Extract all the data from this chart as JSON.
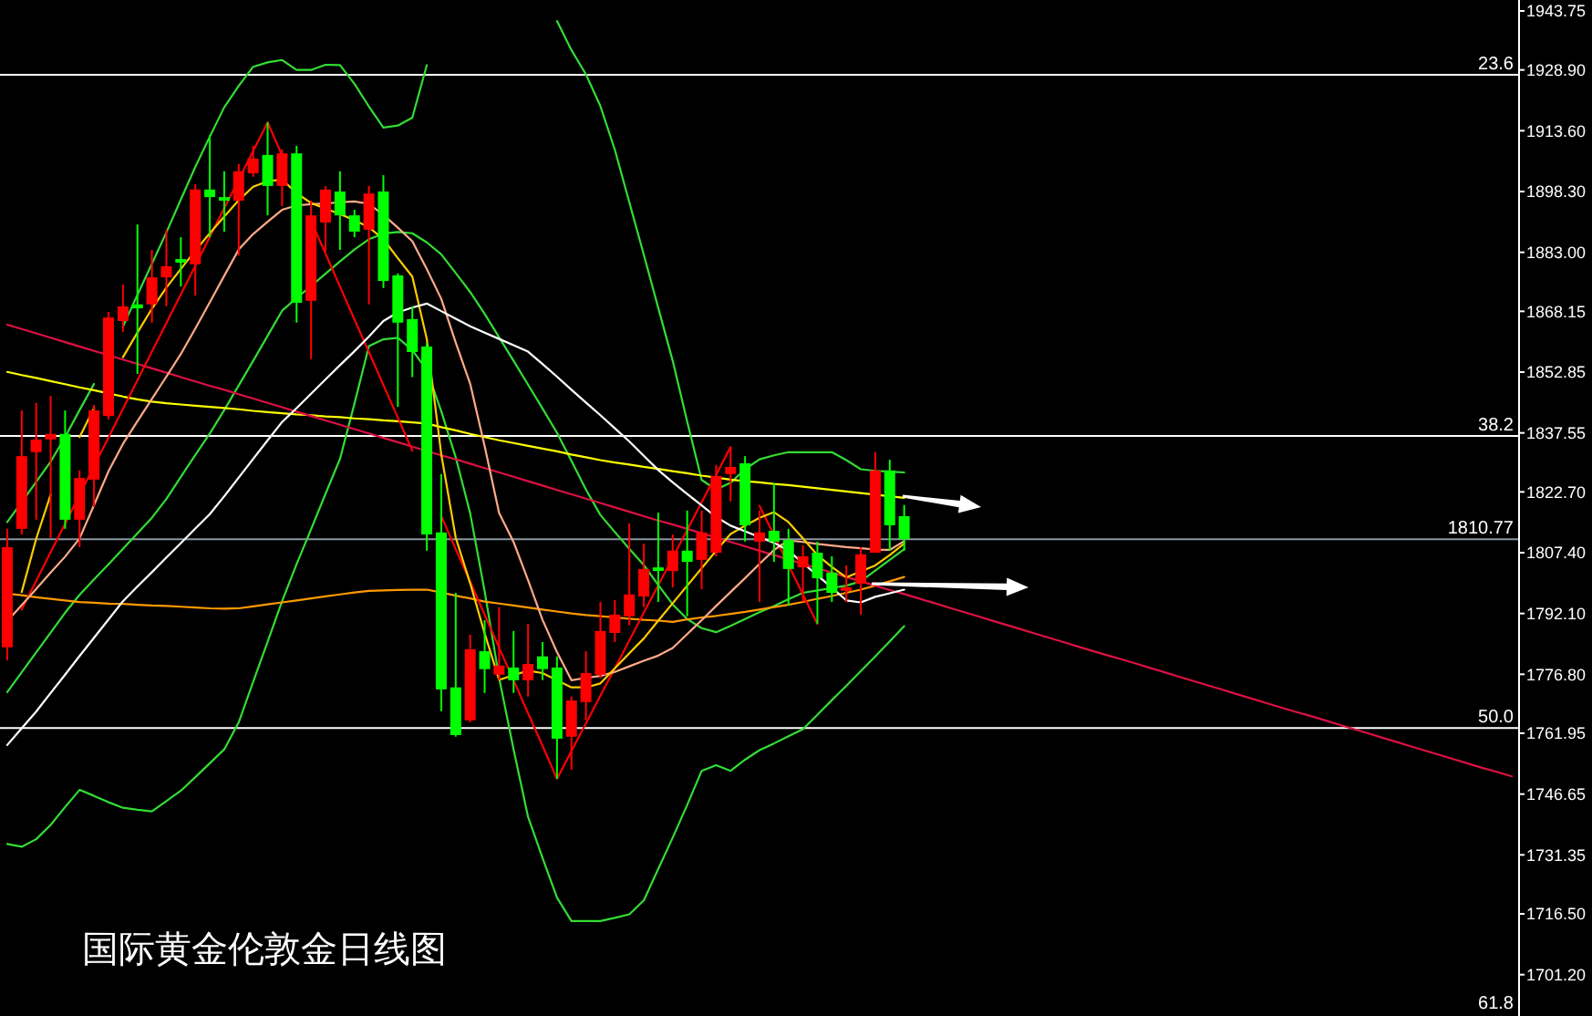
{
  "chart_data": {
    "type": "candlestick",
    "title": "国际黄金伦敦金日线图",
    "ylim": [
      1690.8,
      1946.5
    ],
    "tick_labels": "y",
    "yticks": [
      {
        "value": 1943.75,
        "label": "1943.75"
      },
      {
        "value": 1928.9,
        "label": "1928.90"
      },
      {
        "value": 1913.6,
        "label": "1913.60"
      },
      {
        "value": 1898.3,
        "label": "1898.30"
      },
      {
        "value": 1883,
        "label": "1883.00"
      },
      {
        "value": 1868.15,
        "label": "1868.15"
      },
      {
        "value": 1852.85,
        "label": "1852.85"
      },
      {
        "value": 1837.55,
        "label": "1837.55"
      },
      {
        "value": 1822.7,
        "label": "1822.70"
      },
      {
        "value": 1807.4,
        "label": "1807.40"
      },
      {
        "value": 1792.1,
        "label": "1792.10"
      },
      {
        "value": 1776.8,
        "label": "1776.80"
      },
      {
        "value": 1761.95,
        "label": "1761.95"
      },
      {
        "value": 1746.65,
        "label": "1746.65"
      },
      {
        "value": 1731.35,
        "label": "1731.35"
      },
      {
        "value": 1716.5,
        "label": "1716.50"
      },
      {
        "value": 1701.2,
        "label": "1701.20"
      }
    ],
    "ref_lines": [
      {
        "axis": "y",
        "value": 1927.7,
        "color": "#ffffff"
      },
      {
        "axis": "y",
        "value": 1836.8,
        "color": "#ffffff"
      },
      {
        "axis": "y",
        "value": 1763.3,
        "color": "#ffffff"
      },
      {
        "axis": "y",
        "value": 1810.77,
        "label": "1810.77",
        "color": "#8a96a3"
      }
    ],
    "annotations": [
      {
        "text": "23.6",
        "y": 1927.7
      },
      {
        "text": "38.2",
        "y": 1836.8
      },
      {
        "text": "50.0",
        "y": 1763.3
      },
      "61.8"
    ],
    "categories": [
      null,
      null,
      null,
      null,
      null,
      null,
      null,
      null,
      null,
      null,
      null,
      null,
      null,
      null,
      null,
      null,
      null,
      null,
      null,
      null,
      null,
      null,
      null,
      null,
      null,
      null,
      null,
      null,
      null,
      null,
      null,
      null,
      null,
      null,
      null,
      null,
      null,
      null,
      null,
      null,
      null,
      null,
      null,
      null,
      null,
      null,
      null,
      null,
      null,
      null,
      null,
      null,
      null,
      null,
      null,
      null,
      null,
      null,
      null,
      null,
      null,
      null,
      null,
      null,
      null,
      null,
      null,
      null,
      null,
      null,
      null,
      null,
      null,
      null,
      null,
      null,
      null,
      null,
      null,
      null,
      null,
      null,
      null,
      null,
      null,
      null,
      null,
      null,
      null,
      null,
      null,
      null,
      null,
      null,
      null,
      null,
      null,
      null,
      null,
      null,
      null,
      null,
      null,
      null,
      null
    ],
    "ohlc": [
      [
        1783.6,
        1813.4,
        1780.3,
        1808.8
      ],
      [
        1813.4,
        1843.2,
        1812.0,
        1831.7
      ],
      [
        1832.7,
        1845.1,
        1815.7,
        1835.9
      ],
      [
        1835.9,
        1846.9,
        1811.1,
        1837.3
      ],
      [
        1837.3,
        1843.2,
        1813.4,
        1815.7
      ],
      [
        1815.7,
        1828.1,
        1808.8,
        1826.2
      ],
      [
        1825.8,
        1844.6,
        1818.9,
        1843.2
      ],
      [
        1841.8,
        1868.0,
        1840.9,
        1866.6
      ],
      [
        1865.7,
        1874.9,
        1863.0,
        1869.4
      ],
      [
        1869.9,
        1890.0,
        1852.4,
        1868.9
      ],
      [
        1869.9,
        1883.6,
        1865.3,
        1876.7
      ],
      [
        1876.7,
        1888.7,
        1869.4,
        1879.5
      ],
      [
        1881.3,
        1886.8,
        1874.4,
        1880.4
      ],
      [
        1880.0,
        1900.1,
        1872.1,
        1898.8
      ],
      [
        1898.8,
        1912.5,
        1886.8,
        1896.9
      ],
      [
        1896.9,
        1903.4,
        1888.2,
        1896.0
      ],
      [
        1896.0,
        1905.2,
        1882.2,
        1903.4
      ],
      [
        1902.9,
        1909.8,
        1902.0,
        1906.6
      ],
      [
        1907.5,
        1915.7,
        1892.3,
        1899.7
      ],
      [
        1899.7,
        1908.9,
        1894.6,
        1907.9
      ],
      [
        1907.9,
        1909.8,
        1865.3,
        1870.3
      ],
      [
        1870.8,
        1896.0,
        1856.1,
        1892.3
      ],
      [
        1890.5,
        1899.7,
        1883.2,
        1898.8
      ],
      [
        1898.3,
        1903.4,
        1883.6,
        1892.3
      ],
      [
        1892.3,
        1893.7,
        1886.8,
        1888.2
      ],
      [
        1888.7,
        1899.7,
        1869.9,
        1897.8
      ],
      [
        1898.3,
        1902.4,
        1874.0,
        1875.8
      ],
      [
        1877.2,
        1877.7,
        1844.1,
        1865.3
      ],
      [
        1866.2,
        1869.4,
        1851.6,
        1857.9
      ],
      [
        1859.3,
        1860.2,
        1807.9,
        1812.0
      ],
      [
        1812.5,
        1827.2,
        1767.5,
        1773.0
      ],
      [
        1773.5,
        1797.3,
        1761.1,
        1761.5
      ],
      [
        1765.2,
        1786.8,
        1764.7,
        1783.1
      ],
      [
        1782.6,
        1790.4,
        1772.1,
        1778.1
      ],
      [
        1776.7,
        1793.7,
        1775.3,
        1779.0
      ],
      [
        1778.5,
        1787.7,
        1772.1,
        1775.3
      ],
      [
        1775.3,
        1789.5,
        1771.2,
        1779.4
      ],
      [
        1781.3,
        1784.9,
        1775.3,
        1778.1
      ],
      [
        1778.5,
        1781.3,
        1750.5,
        1760.6
      ],
      [
        1761.1,
        1771.2,
        1752.8,
        1770.2
      ],
      [
        1769.8,
        1782.6,
        1765.2,
        1777.1
      ],
      [
        1776.7,
        1795.0,
        1775.8,
        1787.7
      ],
      [
        1787.2,
        1795.5,
        1784.9,
        1791.8
      ],
      [
        1791.4,
        1814.8,
        1789.1,
        1796.9
      ],
      [
        1796.4,
        1809.7,
        1793.7,
        1803.3
      ],
      [
        1803.7,
        1817.5,
        1795.0,
        1802.8
      ],
      [
        1802.8,
        1812.0,
        1798.7,
        1807.9
      ],
      [
        1807.9,
        1818.0,
        1791.4,
        1805.1
      ],
      [
        1805.6,
        1818.0,
        1798.2,
        1812.5
      ],
      [
        1807.4,
        1829.5,
        1806.5,
        1826.7
      ],
      [
        1827.2,
        1834.0,
        1820.3,
        1829.0
      ],
      [
        1829.9,
        1831.7,
        1810.2,
        1814.3
      ],
      [
        1810.2,
        1818.0,
        1795.0,
        1812.5
      ],
      [
        1812.9,
        1824.9,
        1805.1,
        1810.2
      ],
      [
        1810.6,
        1813.4,
        1794.1,
        1803.3
      ],
      [
        1803.7,
        1809.3,
        1795.0,
        1806.5
      ],
      [
        1807.4,
        1810.2,
        1789.5,
        1801.0
      ],
      [
        1802.4,
        1806.5,
        1795.0,
        1797.3
      ],
      [
        1797.8,
        1804.2,
        1795.0,
        1798.7
      ],
      [
        1799.6,
        1808.8,
        1791.8,
        1807.0
      ],
      [
        1807.4,
        1832.7,
        1807.4,
        1828.1
      ],
      [
        1828.1,
        1830.8,
        1807.9,
        1814.3
      ],
      [
        1816.6,
        1819.4,
        1807.9,
        1810.8
      ],
      null,
      null,
      null,
      null,
      null,
      null,
      null,
      null,
      null,
      null,
      null,
      null,
      null,
      null,
      null,
      null,
      null,
      null,
      null,
      null,
      null,
      null,
      null,
      null,
      null,
      null,
      null,
      null,
      null,
      null,
      null,
      null,
      null,
      null,
      null,
      null,
      null,
      null,
      null,
      null,
      null,
      null
    ],
    "colors": [
      "#ff0000",
      "#ff0000",
      "#ff0000",
      "#ff0000",
      "#00ff00",
      "#ff0000",
      "#ff0000",
      "#ff0000",
      "#ff0000",
      "#00ff00",
      "#ff0000",
      "#ff0000",
      "#00ff00",
      "#ff0000",
      "#00ff00",
      "#00ff00",
      "#ff0000",
      "#ff0000",
      "#00ff00",
      "#ff0000",
      "#00ff00",
      "#ff0000",
      "#ff0000",
      "#00ff00",
      "#00ff00",
      "#ff0000",
      "#00ff00",
      "#00ff00",
      "#00ff00",
      "#00ff00",
      "#00ff00",
      "#00ff00",
      "#ff0000",
      "#00ff00",
      "#ff0000",
      "#00ff00",
      "#ff0000",
      "#00ff00",
      "#00ff00",
      "#ff0000",
      "#ff0000",
      "#ff0000",
      "#ff0000",
      "#ff0000",
      "#ff0000",
      "#00ff00",
      "#ff0000",
      "#00ff00",
      "#ff0000",
      "#ff0000",
      "#ff0000",
      "#00ff00",
      "#ff0000",
      "#00ff00",
      "#00ff00",
      "#ff0000",
      "#00ff00",
      "#00ff00",
      "#ff0000",
      "#ff0000",
      "#ff0000",
      "#00ff00",
      "#00ff00",
      null,
      null,
      null,
      null,
      null,
      null,
      null,
      null,
      null,
      null,
      null,
      null,
      null,
      null,
      null,
      null,
      null,
      null,
      null,
      null,
      null,
      null,
      null,
      null,
      null,
      null,
      null,
      null,
      null,
      null,
      null,
      null,
      null,
      null,
      null,
      null,
      null,
      null,
      null,
      null,
      null,
      null
    ],
    "series": [
      {
        "type": "line",
        "color": "#33dd33",
        "values": [
          1815.1,
          1820.1,
          1825.2,
          1830.3,
          1836.5,
          1843.3,
          1849.9,
          null,
          1864.3,
          1872.3,
          1880.1,
          1888.0,
          1896.3,
          1904.5,
          1912.1,
          1919.5,
          1924.9,
          1929.7,
          1930.8,
          1931.4,
          1928.9,
          1928.9,
          1930.2,
          1930.1,
          1925.4,
          1919.7,
          1914.4,
          1914.9,
          1916.9,
          1930.1,
          null,
          null,
          null,
          null,
          null,
          null,
          null,
          null,
          1941.2,
          1933.9,
          1927.8,
          1919.8,
          1908.8,
          1895.6,
          1882.4,
          1869.0,
          1855.7,
          1840.4,
          1825.7,
          1823.3,
          1825.0,
          1828.4,
          1830.9,
          1831.9,
          1832.7,
          1832.7,
          1832.7,
          1832.7,
          1830.7,
          1828.4,
          1828.0,
          1827.8,
          1827.6,
          null,
          null,
          null,
          null,
          null,
          null,
          null,
          null,
          null,
          null,
          null,
          null,
          null,
          null,
          null,
          null,
          null,
          null,
          null,
          null,
          null,
          null,
          null,
          null,
          null,
          null,
          null,
          null,
          null,
          null,
          null,
          null,
          null,
          null,
          null,
          null,
          null,
          null,
          null,
          null,
          null,
          null
        ]
      },
      {
        "type": "line",
        "color": "#33dd33",
        "values": [
          1734.1,
          1733.4,
          1735.3,
          1738.9,
          1743.4,
          1747.7,
          1746.2,
          1744.6,
          1743.2,
          1742.7,
          1742.3,
          1744.9,
          1747.5,
          1750.9,
          1754.4,
          1757.9,
          1764.7,
          1774.9,
          1785.0,
          1795.2,
          1804.5,
          1813.3,
          1822.2,
          1831.0,
          1844.9,
          1859.4,
          1861.1,
          1861.5,
          1858.4,
          1853.4,
          1843.0,
          1831.4,
          1817.3,
          1797.7,
          1775.9,
          1757.9,
          1740.9,
          1730.6,
          1720.6,
          1714.7,
          1714.7,
          1714.7,
          1715.5,
          1716.4,
          1719.9,
          1727.8,
          1735.7,
          1743.9,
          1752.5,
          1753.9,
          1752.5,
          1755.3,
          1757.7,
          1759.4,
          1761.2,
          1763.0,
          1766.6,
          1770.3,
          1773.9,
          1777.6,
          1781.3,
          1785.1,
          1788.9,
          null,
          null,
          null,
          null,
          null,
          null,
          null,
          null,
          null,
          null,
          null,
          null,
          null,
          null,
          null,
          null,
          null,
          null,
          null,
          null,
          null,
          null,
          null,
          null,
          null,
          null,
          null,
          null,
          null,
          null,
          null,
          null,
          null,
          null,
          null,
          null,
          null,
          null,
          null,
          null,
          null,
          null
        ]
      },
      {
        "type": "line",
        "color": "#33dd33",
        "values": [
          1772.3,
          1777.3,
          1782.3,
          1787.3,
          1792.3,
          1796.8,
          1800.7,
          1804.5,
          1808.4,
          1812.3,
          1816.2,
          1820.9,
          1826.5,
          1832.0,
          1837.4,
          1843.3,
          1849.5,
          1855.7,
          1862.0,
          1868.3,
          1871.5,
          1874.5,
          1877.6,
          1880.7,
          1883.7,
          1886.3,
          1887.7,
          1888.1,
          1887.8,
          1885.5,
          1882.5,
          1877.8,
          1873.0,
          1867.5,
          1861.6,
          1855.7,
          1849.7,
          1843.7,
          1837.6,
          1830.5,
          1823.3,
          1816.9,
          1812.6,
          1808.4,
          1804.3,
          1799.3,
          1794.4,
          1790.7,
          1788.4,
          1787.4,
          1789.0,
          1790.7,
          1792.4,
          1794.0,
          1795.7,
          1797.3,
          1797.9,
          1798.5,
          1799.1,
          1800.2,
          1802.9,
          1805.6,
          1808.3,
          null,
          null,
          null,
          null,
          null,
          null,
          null,
          null,
          null,
          null,
          null,
          null,
          null,
          null,
          null,
          null,
          null,
          null,
          null,
          null,
          null,
          null,
          null,
          null,
          null,
          null,
          null,
          null,
          null,
          null,
          null,
          null,
          null,
          null,
          null,
          null,
          null,
          null,
          null,
          null,
          null,
          null
        ]
      },
      {
        "type": "line",
        "color": "#ffff00",
        "values": [
          1852.9,
          1852.1,
          1851.4,
          1850.6,
          1849.8,
          1849.0,
          1848.3,
          1847.5,
          1846.7,
          1846.0,
          1845.4,
          1845.0,
          1844.7,
          1844.4,
          1844.1,
          1843.8,
          1843.5,
          1843.1,
          1842.8,
          1842.5,
          1842.2,
          1842.0,
          1841.7,
          1841.5,
          1841.2,
          1841.0,
          1840.7,
          1840.5,
          1840.2,
          1839.9,
          1839.0,
          1838.2,
          1837.3,
          1836.5,
          1835.7,
          1835.0,
          1834.3,
          1833.6,
          1832.9,
          1832.1,
          1831.4,
          1830.7,
          1830.1,
          1829.6,
          1829.0,
          1828.5,
          1827.9,
          1827.4,
          1826.8,
          1826.3,
          1825.8,
          1825.4,
          1825.1,
          1824.7,
          1824.4,
          1824.0,
          1823.6,
          1823.2,
          1822.8,
          1822.4,
          1822.0,
          1821.6,
          1821.2,
          null,
          null,
          null,
          null,
          null,
          null,
          null,
          null,
          null,
          null,
          null,
          null,
          null,
          null,
          null,
          null,
          null,
          null,
          null,
          null,
          null,
          null,
          null,
          null,
          null,
          null,
          null,
          null,
          null,
          null,
          null,
          null,
          null,
          null,
          null,
          null,
          null,
          null,
          null,
          null,
          null,
          null
        ]
      },
      {
        "type": "line",
        "color": "#ff9900",
        "values": [
          1797.1,
          1796.7,
          1796.2,
          1795.8,
          1795.4,
          1795.0,
          1794.8,
          1794.6,
          1794.5,
          1794.3,
          1794.1,
          1794.0,
          1793.8,
          1793.6,
          1793.4,
          1793.3,
          1793.4,
          1793.9,
          1794.4,
          1794.9,
          1795.4,
          1795.9,
          1796.4,
          1796.9,
          1797.4,
          1797.8,
          1797.9,
          1798.0,
          1798.1,
          1798.1,
          1797.4,
          1796.6,
          1795.9,
          1795.1,
          1794.6,
          1794.1,
          1793.6,
          1793.1,
          1792.6,
          1792.1,
          1791.7,
          1791.4,
          1791.1,
          1790.8,
          1790.5,
          1790.3,
          1790.0,
          1790.6,
          1791.1,
          1791.5,
          1792.0,
          1792.5,
          1793.1,
          1793.7,
          1794.3,
          1795.0,
          1795.8,
          1796.5,
          1797.3,
          1798.1,
          1799.1,
          1800.2,
          1801.3,
          null,
          null,
          null,
          null,
          null,
          null,
          null,
          null,
          null,
          null,
          null,
          null,
          null,
          null,
          null,
          null,
          null,
          null,
          null,
          null,
          null,
          null,
          null,
          null,
          null,
          null,
          null,
          null,
          null,
          null,
          null,
          null,
          null,
          null,
          null,
          null,
          null,
          null,
          null,
          null,
          null,
          null
        ]
      },
      {
        "type": "line",
        "color": "#dd1144",
        "values": [
          1864.8,
          1863.7,
          1862.6,
          1861.5,
          1860.4,
          1859.3,
          1858.2,
          1857.1,
          1856.0,
          1854.9,
          1853.8,
          1852.7,
          1851.6,
          1850.5,
          1849.4,
          1848.4,
          1847.3,
          1846.2,
          1845.1,
          1844.0,
          1842.9,
          1841.8,
          1840.7,
          1839.6,
          1838.5,
          1837.4,
          1836.3,
          1835.2,
          1834.1,
          1833.0,
          1831.9,
          1830.9,
          1829.8,
          1828.7,
          1827.6,
          1826.5,
          1825.4,
          1824.3,
          1823.2,
          1822.1,
          1821.0,
          1819.9,
          1818.8,
          1817.7,
          1816.6,
          1815.5,
          1814.5,
          1813.4,
          1812.3,
          1811.2,
          1810.1,
          1809.0,
          1807.9,
          1806.8,
          1805.7,
          1804.6,
          1803.5,
          1802.4,
          1801.3,
          1800.2,
          1799.1,
          1798.0,
          1797.0,
          1795.9,
          1794.8,
          1793.7,
          1792.6,
          1791.5,
          1790.4,
          1789.3,
          1788.2,
          1787.1,
          1786.0,
          1784.9,
          1783.8,
          1782.7,
          1781.6,
          1780.6,
          1779.5,
          1778.4,
          1777.3,
          1776.2,
          1775.1,
          1774.0,
          1772.9,
          1771.8,
          1770.7,
          1769.6,
          1768.5,
          1767.4,
          1766.4,
          1765.3,
          1764.2,
          1763.1,
          1762.0,
          1760.9,
          1759.8,
          1758.7,
          1757.6,
          1756.5,
          1755.4,
          1754.3,
          1753.2,
          1752.2,
          1751.1
        ]
      },
      {
        "type": "line",
        "color": "#ff0000",
        "values": [
          null,
          1793.1,
          1800.3,
          1807.5,
          1814.7,
          1822.0,
          1829.2,
          1836.4,
          1843.6,
          1850.8,
          1858.0,
          1865.2,
          1872.4,
          1879.6,
          1886.9,
          1894.1,
          1901.3,
          1908.5,
          1915.7,
          1907.4,
          null,
          1890.9,
          1882.7,
          1874.4,
          1866.1,
          1857.9,
          1849.6,
          1841.4,
          1833.1,
          null,
          1816.6,
          1808.3,
          1800.1,
          1791.8,
          1783.5,
          1775.3,
          1767.0,
          1758.8,
          1750.5,
          1757.5,
          1764.4,
          1771.4,
          1778.3,
          1785.3,
          1792.3,
          1799.2,
          1806.2,
          1813.1,
          1820.1,
          1827.0,
          1834.0,
          null,
          1819.2,
          1811.8,
          1804.3,
          1796.9,
          1789.5,
          null,
          null,
          null,
          null,
          null,
          null,
          null,
          null,
          null,
          null,
          null,
          null,
          null,
          null,
          null,
          null,
          null,
          null,
          null,
          null,
          null,
          null,
          null,
          null,
          null,
          null,
          null,
          null,
          null,
          null,
          null,
          null,
          null,
          null,
          null,
          null,
          null,
          null,
          null,
          null,
          null,
          null,
          null,
          null,
          null,
          null,
          null,
          null
        ]
      },
      {
        "type": "line",
        "color": "#ffaa88",
        "values": [
          1790.2,
          1794.2,
          1798.3,
          1802.4,
          1806.4,
          1811.0,
          1819.4,
          1827.9,
          1834.8,
          1840.5,
          1846.1,
          1851.7,
          1857.4,
          1863.8,
          1870.4,
          1877.1,
          1883.7,
          1887.6,
          1890.7,
          1893.7,
          1894.8,
          1895.1,
          1895.3,
          1895.6,
          1895.8,
          1895.2,
          1892.4,
          1889.2,
          1885.8,
          1878.8,
          1871.3,
          1860.3,
          1849.9,
          1834.2,
          1817.4,
          1810.1,
          1800.5,
          1790.5,
          1782.4,
          1775.3,
          1775.9,
          1776.4,
          1777.4,
          1778.8,
          1780.2,
          1781.5,
          1783.4,
          1786.9,
          1790.4,
          1794.0,
          1797.5,
          1801.0,
          1804.6,
          1808.1,
          1810.5,
          1810.1,
          1809.6,
          1809.2,
          1808.8,
          1808.5,
          1808.2,
          1808.1,
          1810.3,
          null,
          null,
          null,
          null,
          null,
          null,
          null,
          null,
          null,
          null,
          null,
          null,
          null,
          null,
          null,
          null,
          null,
          null,
          null,
          null,
          null,
          null,
          null,
          null,
          null,
          null,
          null,
          null,
          null,
          null,
          null,
          null,
          null,
          null,
          null,
          null,
          null,
          null,
          null,
          null,
          null,
          null
        ]
      },
      {
        "type": "line",
        "color": "#ffcc00",
        "values": [
          null,
          1797.5,
          1810.9,
          1822.0,
          null,
          1836.5,
          1843.8,
          null,
          1856.6,
          1862.8,
          1868.8,
          1874.1,
          1878.8,
          1883.4,
          1887.8,
          1892.0,
          1896.1,
          1899.5,
          1900.9,
          1901.3,
          1897.9,
          1895.4,
          1894.0,
          1892.6,
          1891.1,
          1889.3,
          1886.3,
          1881.5,
          1876.9,
          1861.2,
          1832.2,
          1811.2,
          1799.7,
          1787.1,
          1775.4,
          1776.6,
          1777.7,
          1777.1,
          1775.3,
          1773.5,
          1773.5,
          1774.5,
          1778.3,
          1782.1,
          1785.8,
          1790.3,
          1794.7,
          1799.1,
          1803.5,
          1807.9,
          1812.1,
          1814.2,
          1816.2,
          1817.6,
          1815.1,
          1811.0,
          1806.8,
          1803.8,
          1801.2,
          1802.7,
          1804.2,
          1806.8,
          1809.7,
          null,
          null,
          null,
          null,
          null,
          null,
          null,
          null,
          null,
          null,
          null,
          null,
          null,
          null,
          null,
          null,
          null,
          null,
          null,
          null,
          null,
          null,
          null,
          null,
          null,
          null,
          null,
          null,
          null,
          null,
          null,
          null,
          null,
          null,
          null,
          null,
          null,
          null,
          null,
          null,
          null,
          null
        ]
      },
      {
        "type": "line",
        "color": "#ffffff",
        "values": [
          1759.0,
          1763.2,
          1767.4,
          1772.1,
          1776.7,
          1781.4,
          1786.0,
          1790.6,
          1795.2,
          1798.9,
          1802.5,
          1806.2,
          1809.8,
          1813.5,
          1817.1,
          1821.6,
          1826.3,
          1831.0,
          1835.7,
          1840.3,
          1843.8,
          1847.4,
          1851.0,
          1854.6,
          1858.1,
          1861.8,
          1865.7,
          1867.9,
          1869.1,
          1870.1,
          1868.2,
          1866.3,
          1864.4,
          1862.8,
          1861.2,
          1859.6,
          1858.0,
          1854.9,
          1851.7,
          1848.4,
          1845.2,
          1842.0,
          1838.7,
          1835.4,
          1831.8,
          1828.2,
          1825.1,
          1822.2,
          1819.3,
          1816.4,
          1814.2,
          1812.8,
          1811.3,
          1809.9,
          1807.9,
          1804.8,
          1801.7,
          1798.6,
          1795.4,
          1794.9,
          1796.3,
          1797.2,
          1798.1,
          null,
          null,
          null,
          null,
          null,
          null,
          null,
          null,
          null,
          null,
          null,
          null,
          null,
          null,
          null,
          null,
          null,
          null,
          null,
          null,
          null,
          null,
          null,
          null,
          null,
          null,
          null,
          null,
          null,
          null,
          null,
          null,
          null,
          null,
          null,
          null,
          null,
          null,
          null,
          null,
          null,
          null
        ]
      }
    ]
  }
}
